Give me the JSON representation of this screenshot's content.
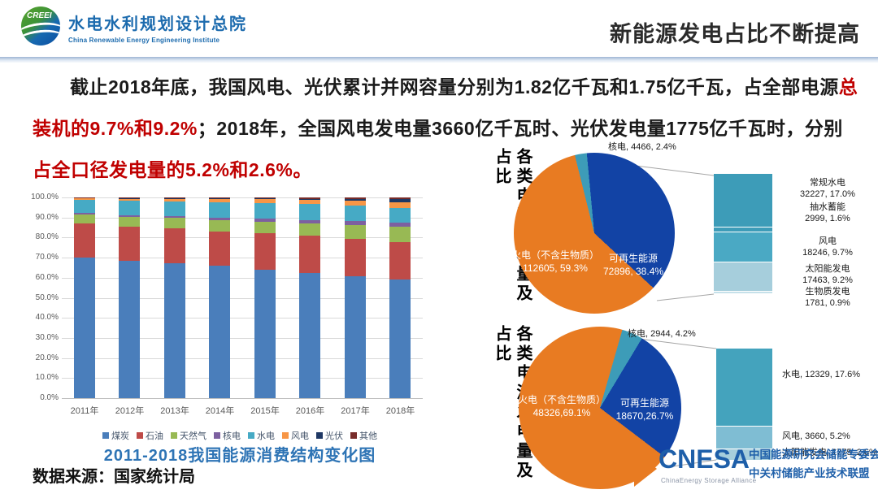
{
  "header": {
    "logo_acronym": "CREEI",
    "org_name_zh": "水电水利规划设计总院",
    "org_name_en": "China Renewable Energy Engineering Institute",
    "slide_title": "新能源发电占比不断提高"
  },
  "paragraph": {
    "r1": "截止2018年底，我国风电、光伏累计并网容量分别为1.82亿千瓦和1.75亿千瓦，占全部电源",
    "r2": "总装机的9.7%和9.2%",
    "r3": "；2018年，全国风电发电量3660亿千瓦时、光伏发电量1775亿千瓦时，分别",
    "r4": "占全口径发电量的5.2%和2.6%。"
  },
  "chart_data": [
    {
      "type": "bar",
      "subtype": "stacked-100",
      "title": "2011-2018我国能源消费结构变化图",
      "xlabel": "",
      "ylabel": "",
      "ylim": [
        0,
        100
      ],
      "unit": "%",
      "grid": true,
      "legend_position": "bottom",
      "categories": [
        "2011年",
        "2012年",
        "2013年",
        "2014年",
        "2015年",
        "2016年",
        "2017年",
        "2018年"
      ],
      "series": [
        {
          "name": "煤炭",
          "color": "#4a7ebb",
          "values": [
            70.2,
            68.5,
            67.4,
            65.8,
            63.8,
            62.2,
            60.6,
            59.0
          ]
        },
        {
          "name": "石油",
          "color": "#be4b48",
          "values": [
            16.8,
            17.0,
            17.1,
            17.3,
            18.4,
            18.7,
            18.9,
            18.9
          ]
        },
        {
          "name": "天然气",
          "color": "#98b954",
          "values": [
            4.6,
            4.8,
            5.3,
            5.6,
            5.8,
            6.1,
            6.9,
            7.6
          ]
        },
        {
          "name": "核电",
          "color": "#7d60a0",
          "values": [
            0.7,
            0.8,
            0.8,
            1.0,
            1.3,
            1.6,
            1.8,
            2.0
          ]
        },
        {
          "name": "水电",
          "color": "#46aac5",
          "values": [
            6.6,
            7.3,
            7.2,
            7.7,
            7.9,
            8.0,
            7.6,
            7.4
          ]
        },
        {
          "name": "风电",
          "color": "#f79646",
          "values": [
            0.7,
            1.0,
            1.4,
            1.7,
            1.9,
            2.1,
            2.5,
            2.8
          ]
        },
        {
          "name": "光伏",
          "color": "#1f3864",
          "values": [
            0.1,
            0.2,
            0.3,
            0.4,
            0.5,
            0.7,
            1.0,
            1.4
          ]
        },
        {
          "name": "其他",
          "color": "#772c2a",
          "values": [
            0.3,
            0.4,
            0.5,
            0.5,
            0.4,
            0.6,
            0.7,
            0.9
          ]
        }
      ]
    },
    {
      "type": "pie",
      "title": "各类电源装机量及占比",
      "unit": "万千瓦",
      "slices": [
        {
          "label": "火电（不含生物质）",
          "value": 112605,
          "pct": 59.3,
          "color": "#e87b22",
          "display": "火电（不含生物质）\n112605, 59.3%"
        },
        {
          "label": "核电",
          "value": 4466,
          "pct": 2.4,
          "color": "#3d9cb8",
          "display": "核电, 4466, 2.4%"
        },
        {
          "label": "可再生能源",
          "value": 72896,
          "pct": 38.4,
          "color": "#1243a5",
          "display": "可再生能源\n72896, 38.4%"
        }
      ],
      "breakout": [
        {
          "label": "常规水电",
          "value": 32227,
          "pct": 17.0,
          "display": "常规水电\n32227, 17.0%"
        },
        {
          "label": "抽水蓄能",
          "value": 2999,
          "pct": 1.6,
          "display": "抽水蓄能\n2999, 1.6%"
        },
        {
          "label": "风电",
          "value": 18246,
          "pct": 9.7,
          "display": "风电\n18246, 9.7%"
        },
        {
          "label": "太阳能发电",
          "value": 17463,
          "pct": 9.2,
          "display": "太阳能发电\n17463, 9.2%"
        },
        {
          "label": "生物质发电",
          "value": 1781,
          "pct": 0.9,
          "display": "生物质发电\n1781, 0.9%"
        }
      ]
    },
    {
      "type": "pie",
      "title": "各类电源发电量及占比",
      "unit": "亿千瓦时",
      "slices": [
        {
          "label": "火电（不含生物质）",
          "value": 48326,
          "pct": 69.1,
          "color": "#e87b22",
          "display": "火电（不含生物质）\n48326,69.1%"
        },
        {
          "label": "核电",
          "value": 2944,
          "pct": 4.2,
          "color": "#3d9cb8",
          "display": "核电, 2944, 4.2%"
        },
        {
          "label": "可再生能源",
          "value": 18670,
          "pct": 26.7,
          "color": "#1243a5",
          "display": "可再生能源\n18670,26.7%"
        }
      ],
      "breakout": [
        {
          "label": "水电",
          "value": 12329,
          "pct": 17.6,
          "display": "水电, 12329, 17.6%"
        },
        {
          "label": "风电",
          "value": 3660,
          "pct": 5.2,
          "display": "风电, 3660, 5.2%"
        },
        {
          "label": "太阳能发电",
          "value": 1775,
          "pct": 2.6,
          "display": "太阳能发电, 1775, 2.6%"
        }
      ]
    }
  ],
  "footer": {
    "source": "数据来源：国家统计局",
    "cnesa_word": "CNESA",
    "cnesa_sub": "ChinaEnergy Storage Alliance",
    "cnesa_org1": "中国能源研究会储能专委会",
    "cnesa_org2": "中关村储能产业技术联盟"
  },
  "colors": {
    "accent_red": "#c00000",
    "title_blue": "#2e74b5",
    "org_blue": "#1c6bae",
    "cnesa_blue": "#1e5fa9",
    "pie_orange": "#e87b22",
    "pie_blue": "#1243a5",
    "pie_teal": "#3d9cb8"
  }
}
